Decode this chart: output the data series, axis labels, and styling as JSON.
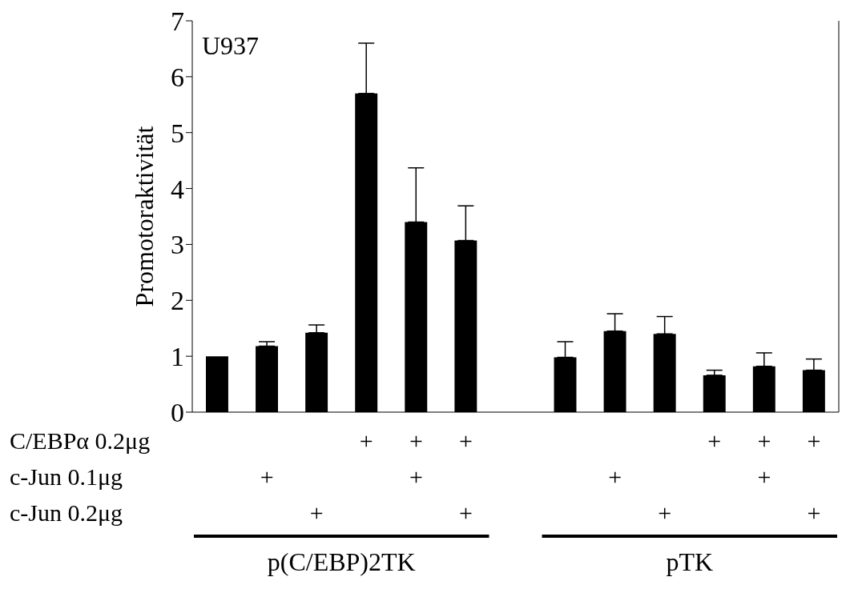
{
  "chart_data": {
    "type": "bar",
    "ylabel": "Promotoraktivität",
    "categories": [
      null,
      null,
      null,
      null,
      null,
      null,
      null,
      null,
      null,
      null,
      null,
      null,
      null
    ],
    "values": [
      1.0,
      1.18,
      1.42,
      5.7,
      3.4,
      3.07,
      null,
      0.98,
      1.45,
      1.4,
      0.66,
      0.82,
      0.75
    ],
    "errors": [
      null,
      [
        1.18,
        1.26
      ],
      [
        1.42,
        1.56
      ],
      [
        5.7,
        6.6
      ],
      [
        3.4,
        4.37
      ],
      [
        3.07,
        3.69
      ],
      null,
      [
        0.98,
        1.26
      ],
      [
        1.45,
        1.76
      ],
      [
        1.4,
        1.71
      ],
      [
        0.66,
        0.75
      ],
      [
        0.82,
        1.06
      ],
      [
        0.75,
        0.95
      ]
    ],
    "color": "#000000",
    "ylim": [
      0,
      7
    ],
    "yticks": [
      0,
      1,
      2,
      3,
      4,
      5,
      6,
      7
    ],
    "grid": false,
    "legend": false,
    "annotations": [
      "U937",
      "C/EBPα 0.2μg",
      "c-Jun 0.1μg",
      "c-Jun 0.2μg",
      "p(C/EBP)2TK",
      "pTK",
      "+",
      "+",
      "+",
      "+",
      "+",
      "+",
      "+",
      "+",
      "+",
      "+",
      "+",
      "+",
      "+",
      "+"
    ]
  }
}
